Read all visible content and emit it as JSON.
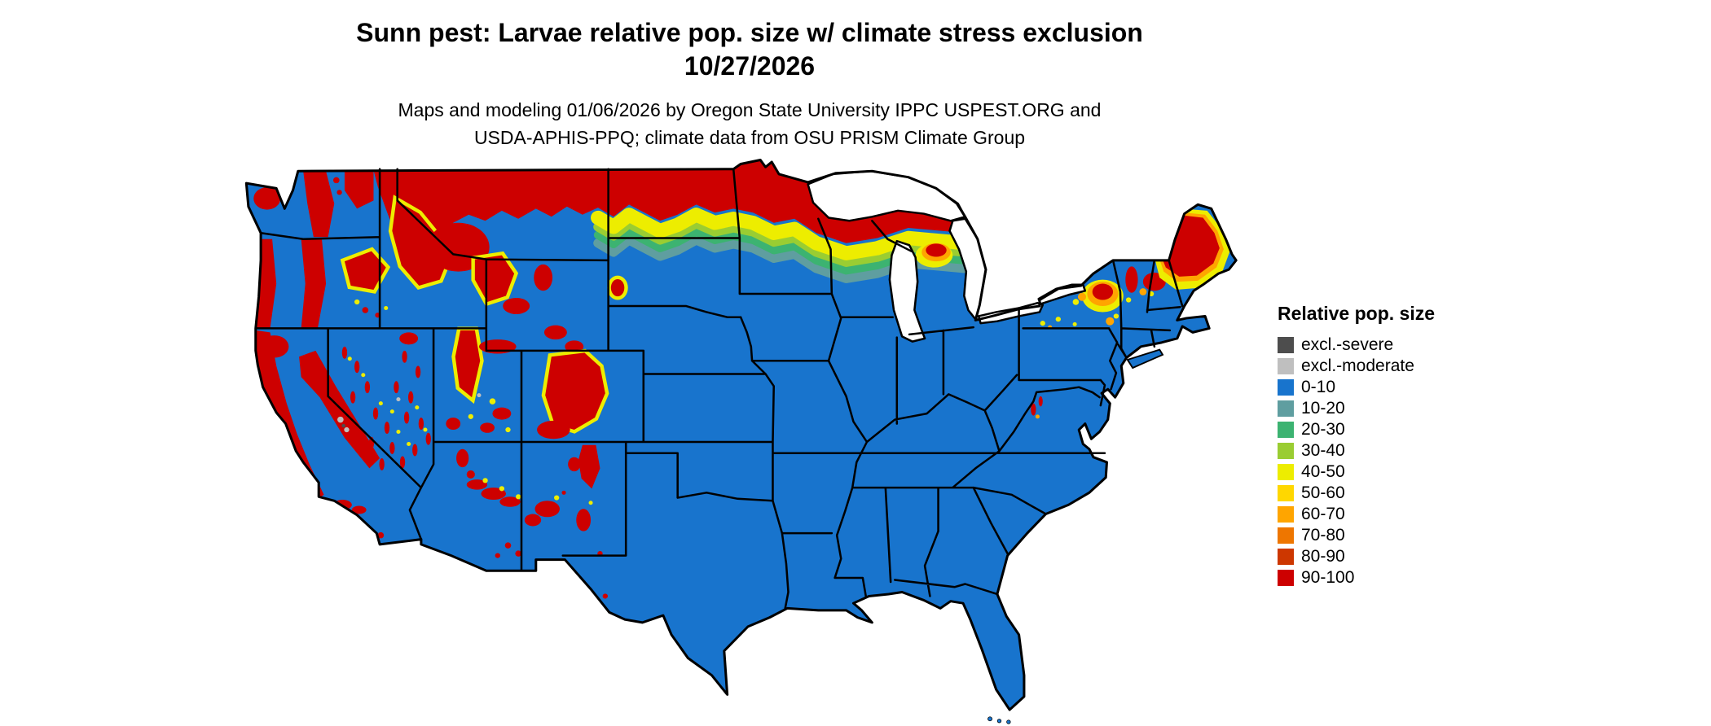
{
  "title": {
    "line1": "Sunn pest: Larvae relative pop. size w/ climate stress exclusion",
    "line2": "10/27/2026"
  },
  "subtitle": {
    "line1": "Maps and modeling 01/06/2026 by Oregon State University IPPC USPEST.ORG and",
    "line2": "USDA-APHIS-PPQ; climate data from OSU PRISM Climate Group"
  },
  "legend": {
    "title": "Relative pop. size",
    "items": [
      {
        "label": "excl.-severe",
        "color": "#4d4d4d"
      },
      {
        "label": "excl.-moderate",
        "color": "#bfbfbf"
      },
      {
        "label": "0-10",
        "color": "#1874cd"
      },
      {
        "label": "10-20",
        "color": "#5f9ea0"
      },
      {
        "label": "20-30",
        "color": "#3cb371"
      },
      {
        "label": "30-40",
        "color": "#9acd32"
      },
      {
        "label": "40-50",
        "color": "#eded00"
      },
      {
        "label": "50-60",
        "color": "#ffd700"
      },
      {
        "label": "60-70",
        "color": "#ffa500"
      },
      {
        "label": "70-80",
        "color": "#ee7600"
      },
      {
        "label": "80-90",
        "color": "#cd3700"
      },
      {
        "label": "90-100",
        "color": "#cd0000"
      }
    ]
  },
  "map": {
    "colors": {
      "blue": "#1874cd",
      "teal": "#5f9ea0",
      "green": "#3cb371",
      "ygreen": "#9acd32",
      "yellow": "#eded00",
      "gold": "#ffd700",
      "orange": "#ffa500",
      "dorange": "#ee7600",
      "rorange": "#cd3700",
      "red": "#cd0000",
      "gmod": "#bfbfbf",
      "gsev": "#4d4d4d"
    }
  }
}
